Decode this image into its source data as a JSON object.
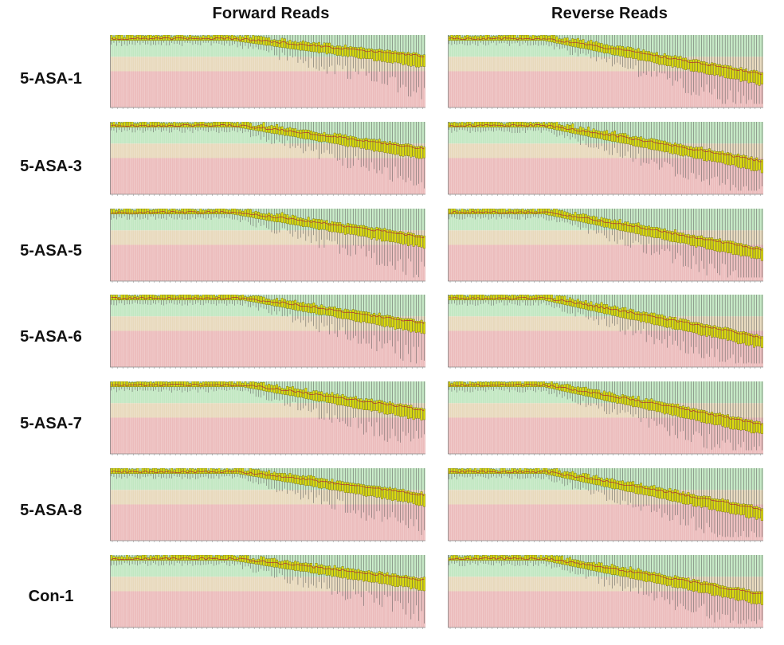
{
  "headers": {
    "forward": "Forward Reads",
    "reverse": "Reverse Reads"
  },
  "colors": {
    "zone_good": "#c2e7c2",
    "zone_reasonable": "#e8d9bc",
    "zone_poor": "#ecbcbc",
    "box_fill": "#dcdc10",
    "box_stroke": "#6a6a00",
    "median_line": "#b03030",
    "whisker": "#555555",
    "axis": "#888888"
  },
  "chart_data": [
    {
      "type": "box",
      "sample": "5-ASA-1",
      "read": "forward",
      "y_zones": {
        "good": [
          28,
          40
        ],
        "reasonable": [
          20,
          28
        ],
        "poor": [
          0,
          20
        ]
      },
      "ylim": [
        0,
        40
      ],
      "quality_profile": {
        "flat_until_fraction": 0.38,
        "final_median": 28,
        "final_q1": 23
      }
    },
    {
      "type": "box",
      "sample": "5-ASA-1",
      "read": "reverse",
      "y_zones": {
        "good": [
          28,
          40
        ],
        "reasonable": [
          20,
          28
        ],
        "poor": [
          0,
          20
        ]
      },
      "ylim": [
        0,
        40
      ],
      "quality_profile": {
        "flat_until_fraction": 0.3,
        "final_median": 18,
        "final_q1": 13
      }
    },
    {
      "type": "box",
      "sample": "5-ASA-3",
      "read": "forward",
      "y_zones": {
        "good": [
          28,
          40
        ],
        "reasonable": [
          20,
          28
        ],
        "poor": [
          0,
          20
        ]
      },
      "ylim": [
        0,
        40
      ],
      "quality_profile": {
        "flat_until_fraction": 0.4,
        "final_median": 25,
        "final_q1": 20
      }
    },
    {
      "type": "box",
      "sample": "5-ASA-3",
      "read": "reverse",
      "y_zones": {
        "good": [
          28,
          40
        ],
        "reasonable": [
          20,
          28
        ],
        "poor": [
          0,
          20
        ]
      },
      "ylim": [
        0,
        40
      ],
      "quality_profile": {
        "flat_until_fraction": 0.3,
        "final_median": 18,
        "final_q1": 13
      }
    },
    {
      "type": "box",
      "sample": "5-ASA-5",
      "read": "forward",
      "y_zones": {
        "good": [
          28,
          40
        ],
        "reasonable": [
          20,
          28
        ],
        "poor": [
          0,
          20
        ]
      },
      "ylim": [
        0,
        40
      ],
      "quality_profile": {
        "flat_until_fraction": 0.38,
        "final_median": 24,
        "final_q1": 19
      }
    },
    {
      "type": "box",
      "sample": "5-ASA-5",
      "read": "reverse",
      "y_zones": {
        "good": [
          28,
          40
        ],
        "reasonable": [
          20,
          28
        ],
        "poor": [
          0,
          20
        ]
      },
      "ylim": [
        0,
        40
      ],
      "quality_profile": {
        "flat_until_fraction": 0.3,
        "final_median": 17,
        "final_q1": 12
      }
    },
    {
      "type": "box",
      "sample": "5-ASA-6",
      "read": "forward",
      "y_zones": {
        "good": [
          28,
          40
        ],
        "reasonable": [
          20,
          28
        ],
        "poor": [
          0,
          20
        ]
      },
      "ylim": [
        0,
        40
      ],
      "quality_profile": {
        "flat_until_fraction": 0.42,
        "final_median": 24,
        "final_q1": 19
      }
    },
    {
      "type": "box",
      "sample": "5-ASA-6",
      "read": "reverse",
      "y_zones": {
        "good": [
          28,
          40
        ],
        "reasonable": [
          20,
          28
        ],
        "poor": [
          0,
          20
        ]
      },
      "ylim": [
        0,
        40
      ],
      "quality_profile": {
        "flat_until_fraction": 0.3,
        "final_median": 16,
        "final_q1": 11
      }
    },
    {
      "type": "box",
      "sample": "5-ASA-7",
      "read": "forward",
      "y_zones": {
        "good": [
          28,
          40
        ],
        "reasonable": [
          20,
          28
        ],
        "poor": [
          0,
          20
        ]
      },
      "ylim": [
        0,
        40
      ],
      "quality_profile": {
        "flat_until_fraction": 0.42,
        "final_median": 24,
        "final_q1": 19
      }
    },
    {
      "type": "box",
      "sample": "5-ASA-7",
      "read": "reverse",
      "y_zones": {
        "good": [
          28,
          40
        ],
        "reasonable": [
          20,
          28
        ],
        "poor": [
          0,
          20
        ]
      },
      "ylim": [
        0,
        40
      ],
      "quality_profile": {
        "flat_until_fraction": 0.3,
        "final_median": 16,
        "final_q1": 11
      }
    },
    {
      "type": "box",
      "sample": "5-ASA-8",
      "read": "forward",
      "y_zones": {
        "good": [
          28,
          40
        ],
        "reasonable": [
          20,
          28
        ],
        "poor": [
          0,
          20
        ]
      },
      "ylim": [
        0,
        40
      ],
      "quality_profile": {
        "flat_until_fraction": 0.4,
        "final_median": 25,
        "final_q1": 20
      }
    },
    {
      "type": "box",
      "sample": "5-ASA-8",
      "read": "reverse",
      "y_zones": {
        "good": [
          28,
          40
        ],
        "reasonable": [
          20,
          28
        ],
        "poor": [
          0,
          20
        ]
      },
      "ylim": [
        0,
        40
      ],
      "quality_profile": {
        "flat_until_fraction": 0.3,
        "final_median": 17,
        "final_q1": 12
      }
    },
    {
      "type": "box",
      "sample": "Con-1",
      "read": "forward",
      "y_zones": {
        "good": [
          28,
          40
        ],
        "reasonable": [
          20,
          28
        ],
        "poor": [
          0,
          20
        ]
      },
      "ylim": [
        0,
        40
      ],
      "quality_profile": {
        "flat_until_fraction": 0.38,
        "final_median": 26,
        "final_q1": 21
      }
    },
    {
      "type": "box",
      "sample": "Con-1",
      "read": "reverse",
      "y_zones": {
        "good": [
          28,
          40
        ],
        "reasonable": [
          20,
          28
        ],
        "poor": [
          0,
          20
        ]
      },
      "ylim": [
        0,
        40
      ],
      "quality_profile": {
        "flat_until_fraction": 0.3,
        "final_median": 18,
        "final_q1": 13
      }
    }
  ],
  "rows": [
    {
      "label": "5-ASA-1"
    },
    {
      "label": "5-ASA-3"
    },
    {
      "label": "5-ASA-5"
    },
    {
      "label": "5-ASA-6"
    },
    {
      "label": "5-ASA-7"
    },
    {
      "label": "5-ASA-8"
    },
    {
      "label": "Con-1"
    }
  ]
}
